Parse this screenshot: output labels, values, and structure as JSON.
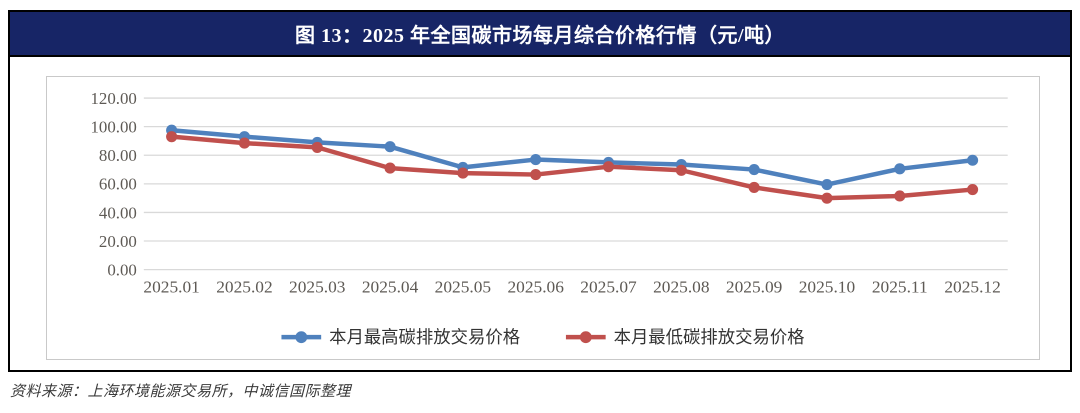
{
  "title_bar": {
    "text": "图 13：2025 年全国碳市场每月综合价格行情（元/吨）",
    "bg_color": "#172566",
    "text_color": "#ffffff"
  },
  "source_note": "资料来源：上海环境能源交易所，中诚信国际整理",
  "chart_data": {
    "type": "line",
    "title": "2025 年全国碳市场每月综合价格行情（元/吨）",
    "categories": [
      "2025.01",
      "2025.02",
      "2025.03",
      "2025.04",
      "2025.05",
      "2025.06",
      "2025.07",
      "2025.08",
      "2025.09",
      "2025.10",
      "2025.11",
      "2025.12"
    ],
    "series": [
      {
        "name": "本月最高碳排放交易价格",
        "color": "#4F81BD",
        "values": [
          97.5,
          93,
          89,
          86,
          71.5,
          77,
          75,
          73.5,
          70,
          59.5,
          70.5,
          76.5
        ]
      },
      {
        "name": "本月最低碳排放交易价格",
        "color": "#C0504D",
        "values": [
          93,
          88.5,
          85.5,
          71,
          67.5,
          66.5,
          72,
          69.5,
          57.5,
          50,
          51.5,
          56
        ]
      }
    ],
    "xlabel": "",
    "ylabel": "",
    "ylim": [
      0,
      120
    ],
    "ytick_step": 20,
    "ytick_labels": [
      "0.00",
      "20.00",
      "40.00",
      "60.00",
      "80.00",
      "100.00",
      "120.00"
    ],
    "grid": true,
    "gridline_color": "#d9d9d9",
    "axis_label_color": "#5e5a55",
    "legend_position": "bottom"
  }
}
